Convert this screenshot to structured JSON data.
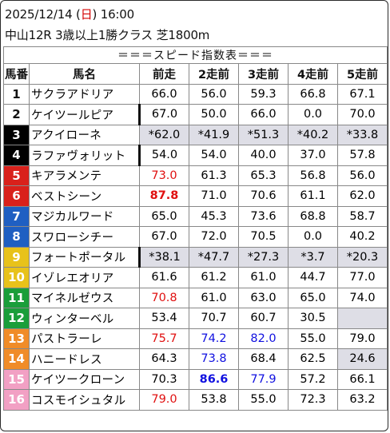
{
  "header": {
    "date_prefix": "2025/12/14 (",
    "weekday": "日",
    "date_suffix": ") 16:00",
    "race": "中山12R 3歳以上1勝クラス 芝1800m"
  },
  "table": {
    "title": "＝＝＝スピード指数表＝＝＝",
    "columns": [
      "馬番",
      "馬名",
      "前走",
      "2走前",
      "3走前",
      "4走前",
      "5走前"
    ],
    "frame_colors": {
      "1": "#ffffff",
      "2": "#000000",
      "3": "#d9211b",
      "4": "#1f5fc2",
      "5": "#e8c21a",
      "6": "#1a9e3a",
      "7": "#f08c28",
      "8": "#f2a0c4"
    },
    "rows": [
      {
        "no": "1",
        "name": "サクラアドリア",
        "frame": 1,
        "vals": [
          "66.0",
          "56.0",
          "59.3",
          "66.8",
          "67.1"
        ],
        "gray": false
      },
      {
        "no": "2",
        "name": "ケイツールピア",
        "frame": 1,
        "vals": [
          "67.0",
          "50.0",
          "66.0",
          "0.0",
          "70.0"
        ],
        "gray": false
      },
      {
        "no": "3",
        "name": "アクイローネ",
        "frame": 2,
        "vals": [
          "*62.0",
          "*41.9",
          "*51.3",
          "*40.2",
          "*33.8"
        ],
        "gray": true
      },
      {
        "no": "4",
        "name": "ラファヴォリット",
        "frame": 2,
        "vals": [
          "54.0",
          "54.0",
          "40.0",
          "37.0",
          "57.8"
        ],
        "gray": false
      },
      {
        "no": "5",
        "name": "キアラメンテ",
        "frame": 3,
        "vals": [
          "73.0",
          "61.3",
          "65.3",
          "56.8",
          "56.0"
        ],
        "gray": false
      },
      {
        "no": "6",
        "name": "ベストシーン",
        "frame": 3,
        "vals": [
          "87.8",
          "71.0",
          "70.6",
          "61.1",
          "62.0"
        ],
        "gray": false
      },
      {
        "no": "7",
        "name": "マジカルワード",
        "frame": 4,
        "vals": [
          "65.0",
          "45.3",
          "73.6",
          "68.8",
          "58.7"
        ],
        "gray": false
      },
      {
        "no": "8",
        "name": "スワローシチー",
        "frame": 4,
        "vals": [
          "67.0",
          "72.0",
          "70.5",
          "0.0",
          "40.2"
        ],
        "gray": false
      },
      {
        "no": "9",
        "name": "フォートポータル",
        "frame": 5,
        "vals": [
          "*38.1",
          "*47.7",
          "*27.3",
          "*3.7",
          "*20.3"
        ],
        "gray": true
      },
      {
        "no": "10",
        "name": "イゾレエオリア",
        "frame": 5,
        "vals": [
          "61.6",
          "61.2",
          "61.0",
          "44.7",
          "77.0"
        ],
        "gray": false
      },
      {
        "no": "11",
        "name": "マイネルゼウス",
        "frame": 6,
        "vals": [
          "70.8",
          "61.0",
          "63.0",
          "65.0",
          "74.0"
        ],
        "gray": false
      },
      {
        "no": "12",
        "name": "ウィンターベル",
        "frame": 6,
        "vals": [
          "53.4",
          "70.7",
          "60.7",
          "30.5",
          ""
        ],
        "gray": false
      },
      {
        "no": "13",
        "name": "パストラーレ",
        "frame": 7,
        "vals": [
          "75.7",
          "74.2",
          "82.0",
          "55.0",
          "79.0"
        ],
        "gray": false
      },
      {
        "no": "14",
        "name": "ハニードレス",
        "frame": 7,
        "vals": [
          "64.3",
          "73.8",
          "68.4",
          "62.5",
          "24.6"
        ],
        "gray": false
      },
      {
        "no": "15",
        "name": "ケイツークローン",
        "frame": 8,
        "vals": [
          "70.3",
          "86.6",
          "77.9",
          "57.2",
          "66.1"
        ],
        "gray": false
      },
      {
        "no": "16",
        "name": "コスモイシュタル",
        "frame": 8,
        "vals": [
          "79.0",
          "53.8",
          "55.0",
          "72.3",
          "63.2"
        ],
        "gray": false
      }
    ],
    "cell_styles": {
      "4-0": "red",
      "5-0": "red bold",
      "10-0": "red",
      "12-0": "red",
      "12-1": "blue",
      "12-2": "blue",
      "13-1": "blue",
      "14-1": "blue bold",
      "14-2": "blue",
      "15-0": "red",
      "11-4": "gray",
      "13-4": "gray"
    },
    "thick_border_rows": [
      1,
      3,
      8
    ]
  }
}
